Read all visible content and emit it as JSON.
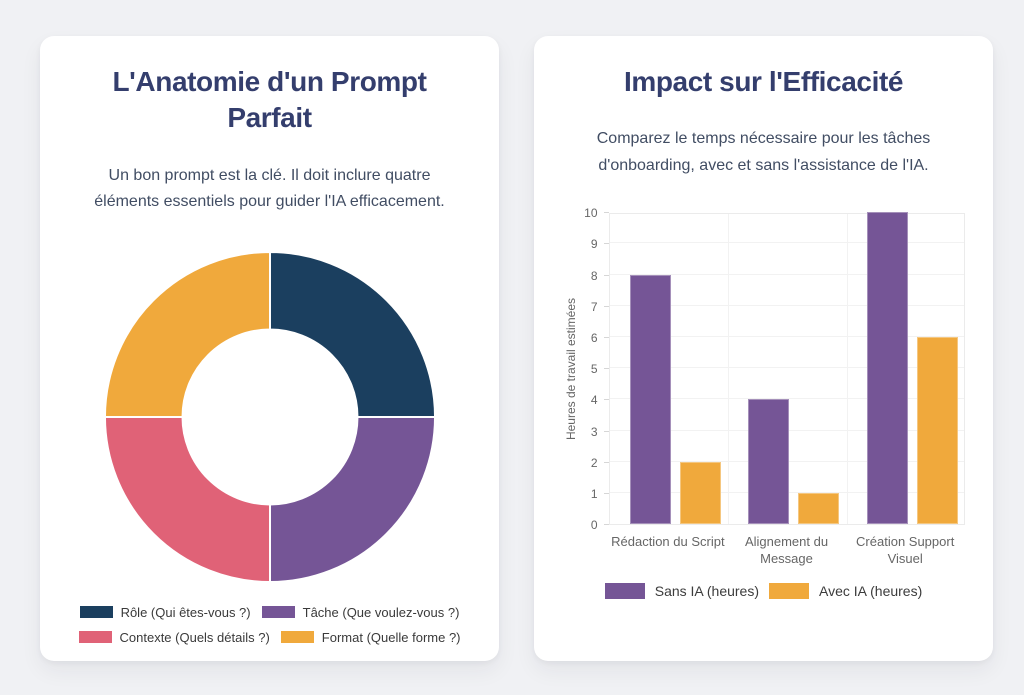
{
  "page": {
    "background_color": "#f0f1f4",
    "card_color": "#ffffff",
    "title_color": "#343e6d"
  },
  "left_card": {
    "title": "L'Anatomie d'un Prompt Parfait",
    "subtitle": "Un bon prompt est la clé. Il doit inclure quatre éléments essentiels pour guider l'IA efficacement."
  },
  "right_card": {
    "title": "Impact sur l'Efficacité",
    "subtitle": "Comparez le temps nécessaire pour les tâches d'onboarding, avec et sans l'assistance de l'IA."
  },
  "chart_data": [
    {
      "type": "pie",
      "variant": "doughnut",
      "title": "L'Anatomie d'un Prompt Parfait",
      "labels": [
        "Rôle (Qui êtes-vous ?)",
        "Tâche (Que voulez-vous ?)",
        "Contexte (Quels détails ?)",
        "Format (Quelle forme ?)"
      ],
      "values": [
        25,
        25,
        25,
        25
      ],
      "colors": [
        "#1b3f5f",
        "#755596",
        "#e06277",
        "#f0a93c"
      ],
      "cutout_percent": 52,
      "start_angle_deg": -90,
      "direction": "clockwise",
      "legend_position": "bottom",
      "legend_rows": [
        [
          0,
          1
        ],
        [
          2,
          3
        ]
      ]
    },
    {
      "type": "bar",
      "title": "Impact sur l'Efficacité",
      "categories": [
        "Rédaction du Script",
        "Alignement du Message",
        "Création Support Visuel"
      ],
      "series": [
        {
          "name": "Sans IA (heures)",
          "values": [
            8,
            4,
            10
          ],
          "color": "#755596"
        },
        {
          "name": "Avec IA (heures)",
          "values": [
            2,
            1,
            6
          ],
          "color": "#f0a93c"
        }
      ],
      "xlabel": "",
      "ylabel": "Heures de travail estimées",
      "ylim": [
        0,
        10
      ],
      "yticks": [
        0,
        1,
        2,
        3,
        4,
        5,
        6,
        7,
        8,
        9,
        10
      ],
      "grid": true,
      "legend_position": "bottom"
    }
  ]
}
